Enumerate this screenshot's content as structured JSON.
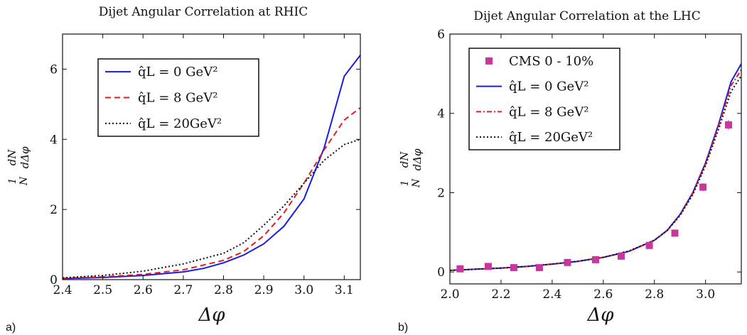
{
  "chart_data": [
    {
      "type": "line",
      "panel": "a)",
      "title": "Dijet Angular Correlation at RHIC",
      "xlabel": "Δφ",
      "ylabel_numerator": "dN",
      "ylabel_denominator": "dΔφ",
      "ylabel_prefix_num": "1",
      "ylabel_prefix_den": "N",
      "xlim": [
        2.4,
        3.14
      ],
      "ylim": [
        0,
        7
      ],
      "xticks": [
        2.4,
        2.5,
        2.6,
        2.7,
        2.8,
        2.9,
        3.0,
        3.1
      ],
      "xtick_labels": [
        "2.4",
        "2.5",
        "2.6",
        "2.7",
        "2.8",
        "2.9",
        "3.0",
        "3.1"
      ],
      "yticks": [
        0,
        2,
        4,
        6
      ],
      "ytick_labels": [
        "0",
        "2",
        "4",
        "6"
      ],
      "legend_position": "top-center",
      "series": [
        {
          "name": "q̂L = 0 GeV²",
          "color": "#1a1ae6",
          "style": "solid",
          "x": [
            2.4,
            2.5,
            2.6,
            2.7,
            2.75,
            2.8,
            2.85,
            2.9,
            2.95,
            3.0,
            3.05,
            3.1,
            3.14
          ],
          "y": [
            0.03,
            0.06,
            0.12,
            0.22,
            0.32,
            0.48,
            0.7,
            1.02,
            1.52,
            2.3,
            3.75,
            5.8,
            6.4
          ]
        },
        {
          "name": "q̂L = 8 GeV²",
          "color": "#e61a1a",
          "style": "dashed",
          "x": [
            2.4,
            2.5,
            2.6,
            2.7,
            2.8,
            2.85,
            2.9,
            2.95,
            3.0,
            3.05,
            3.1,
            3.14
          ],
          "y": [
            0.04,
            0.08,
            0.15,
            0.28,
            0.55,
            0.8,
            1.25,
            1.9,
            2.75,
            3.7,
            4.55,
            4.9
          ]
        },
        {
          "name": "q̂L = 20GeV²",
          "color": "#111111",
          "style": "dotted",
          "x": [
            2.4,
            2.5,
            2.6,
            2.7,
            2.8,
            2.85,
            2.9,
            2.95,
            3.0,
            3.05,
            3.1,
            3.14
          ],
          "y": [
            0.05,
            0.12,
            0.24,
            0.45,
            0.75,
            1.05,
            1.55,
            2.1,
            2.75,
            3.4,
            3.85,
            4.0
          ]
        }
      ]
    },
    {
      "type": "line",
      "panel": "b)",
      "title": "Dijet Angular Correlation at the LHC",
      "xlabel": "Δφ",
      "ylabel_numerator": "dN",
      "ylabel_denominator": "dΔφ",
      "ylabel_prefix_num": "1",
      "ylabel_prefix_den": "N",
      "xlim": [
        2.0,
        3.14
      ],
      "ylim": [
        -0.3,
        6
      ],
      "xticks": [
        2.0,
        2.2,
        2.4,
        2.6,
        2.8,
        3.0
      ],
      "xtick_labels": [
        "2.0",
        "2.2",
        "2.4",
        "2.6",
        "2.8",
        "3.0"
      ],
      "yticks": [
        0,
        2,
        4,
        6
      ],
      "ytick_labels": [
        "0",
        "2",
        "4",
        "6"
      ],
      "legend_position": "top-left",
      "scatter": {
        "name": "CMS 0 - 10%",
        "color": "#c8379b",
        "x": [
          2.04,
          2.15,
          2.25,
          2.35,
          2.46,
          2.57,
          2.67,
          2.78,
          2.88,
          2.99,
          3.09
        ],
        "y": [
          0.08,
          0.14,
          0.11,
          0.11,
          0.24,
          0.31,
          0.4,
          0.67,
          0.98,
          2.14,
          3.71
        ],
        "err": [
          0.03,
          0.03,
          0.03,
          0.03,
          0.03,
          0.03,
          0.04,
          0.05,
          0.06,
          0.1,
          0.12
        ]
      },
      "series": [
        {
          "name": "q̂L = 0 GeV²",
          "color": "#1a1ae6",
          "style": "solid",
          "x": [
            2.0,
            2.1,
            2.2,
            2.3,
            2.4,
            2.5,
            2.6,
            2.7,
            2.8,
            2.85,
            2.9,
            2.95,
            3.0,
            3.05,
            3.1,
            3.14
          ],
          "y": [
            0.04,
            0.07,
            0.1,
            0.14,
            0.2,
            0.27,
            0.37,
            0.52,
            0.8,
            1.05,
            1.45,
            2.0,
            2.75,
            3.7,
            4.8,
            5.25
          ]
        },
        {
          "name": "q̂L = 8 GeV²",
          "color": "#e61a1a",
          "style": "dashdot",
          "x": [
            2.0,
            2.1,
            2.2,
            2.3,
            2.4,
            2.5,
            2.6,
            2.7,
            2.8,
            2.85,
            2.9,
            2.95,
            3.0,
            3.05,
            3.1,
            3.14
          ],
          "y": [
            0.04,
            0.07,
            0.1,
            0.14,
            0.2,
            0.27,
            0.37,
            0.52,
            0.8,
            1.04,
            1.43,
            1.98,
            2.72,
            3.65,
            4.7,
            5.1
          ]
        },
        {
          "name": "q̂L = 20GeV²",
          "color": "#111111",
          "style": "dotted",
          "x": [
            2.0,
            2.1,
            2.2,
            2.3,
            2.4,
            2.5,
            2.6,
            2.7,
            2.8,
            2.85,
            2.9,
            2.95,
            3.0,
            3.05,
            3.1,
            3.14
          ],
          "y": [
            0.04,
            0.07,
            0.1,
            0.14,
            0.2,
            0.27,
            0.37,
            0.53,
            0.8,
            1.05,
            1.42,
            1.95,
            2.68,
            3.58,
            4.55,
            4.95
          ]
        }
      ]
    }
  ]
}
